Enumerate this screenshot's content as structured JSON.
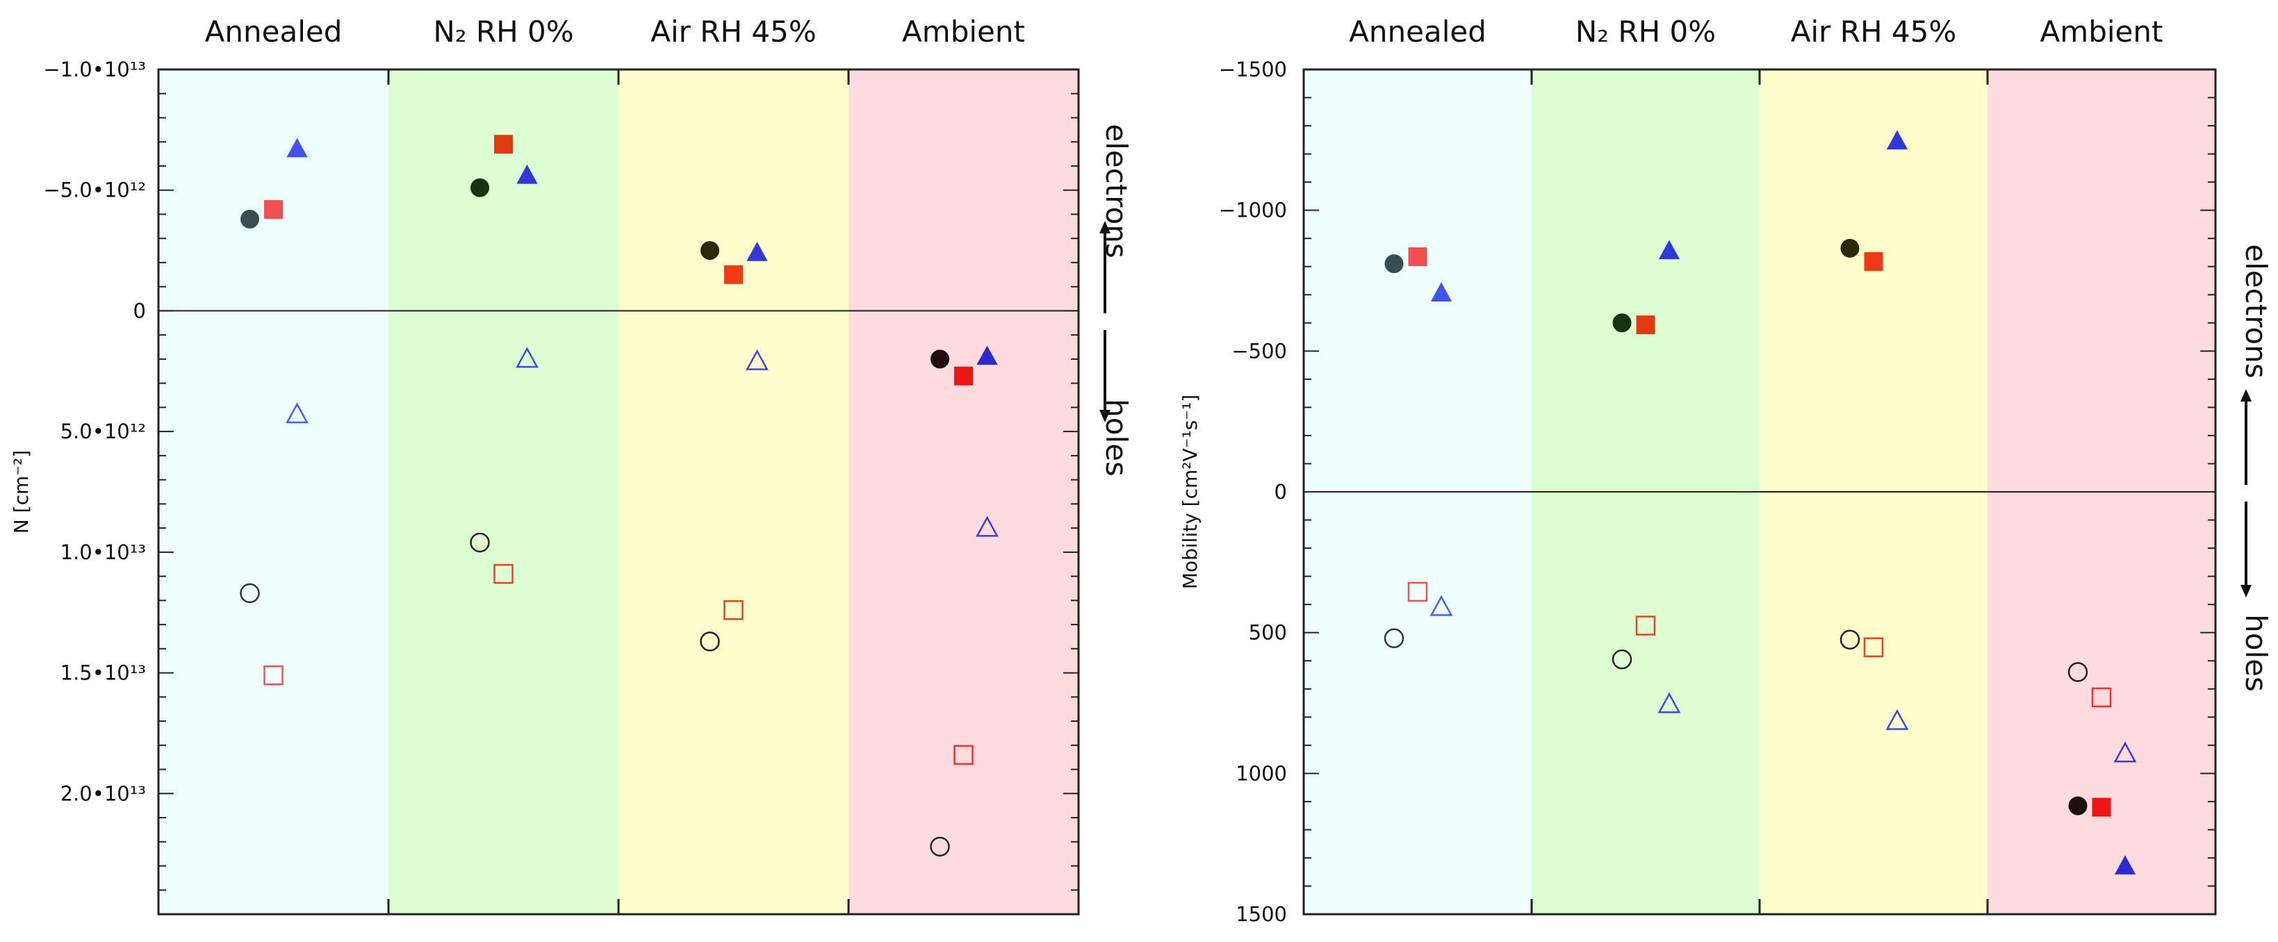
{
  "chart_data": [
    {
      "type": "scatter",
      "title": "",
      "ylabel": "N [cm⁻²]",
      "y_inverted": true,
      "ylim": [
        -10000000000000.0,
        25000000000000.0
      ],
      "categories": [
        "Annealed",
        "N₂ RH 0%",
        "Air RH 45%",
        "Ambient"
      ],
      "category_colors": [
        "#eefeff",
        "#ddfed3",
        "#fefdcb",
        "#fedcdd"
      ],
      "y_ticks": [
        {
          "value": -10000000000000.0,
          "label": "−1.0•10¹³"
        },
        {
          "value": -5000000000000.0,
          "label": "−5.0•10¹²"
        },
        {
          "value": 0,
          "label": "0"
        },
        {
          "value": 5000000000000.0,
          "label": "5.0•10¹²"
        },
        {
          "value": 10000000000000.0,
          "label": "1.0•10¹³"
        },
        {
          "value": 15000000000000.0,
          "label": "1.5•10¹³"
        },
        {
          "value": 20000000000000.0,
          "label": "2.0•10¹³"
        }
      ],
      "annotations": {
        "top": "electrons",
        "bottom": "holes"
      },
      "points": [
        {
          "cat": 0,
          "offset": -1,
          "y": -3800000000000.0,
          "marker": "circle",
          "filled": true,
          "color": "#3a4d50"
        },
        {
          "cat": 0,
          "offset": 0,
          "y": -4200000000000.0,
          "marker": "square",
          "filled": true,
          "color": "#f05050"
        },
        {
          "cat": 0,
          "offset": 1,
          "y": -6700000000000.0,
          "marker": "triangle",
          "filled": true,
          "color": "#3f52f0"
        },
        {
          "cat": 0,
          "offset": -1,
          "y": 11700000000000.0,
          "marker": "circle",
          "filled": false,
          "color": "#333333"
        },
        {
          "cat": 0,
          "offset": 0,
          "y": 15100000000000.0,
          "marker": "square",
          "filled": false,
          "color": "#f05050"
        },
        {
          "cat": 0,
          "offset": 1,
          "y": 4300000000000.0,
          "marker": "triangle",
          "filled": false,
          "color": "#4a5af0"
        },
        {
          "cat": 1,
          "offset": -1,
          "y": -5100000000000.0,
          "marker": "circle",
          "filled": true,
          "color": "#14330f"
        },
        {
          "cat": 1,
          "offset": 0,
          "y": -6900000000000.0,
          "marker": "square",
          "filled": true,
          "color": "#e23a10"
        },
        {
          "cat": 1,
          "offset": 1,
          "y": -5600000000000.0,
          "marker": "triangle",
          "filled": true,
          "color": "#2d3ad8"
        },
        {
          "cat": 1,
          "offset": -1,
          "y": 9600000000000.0,
          "marker": "circle",
          "filled": false,
          "color": "#222222"
        },
        {
          "cat": 1,
          "offset": 0,
          "y": 10900000000000.0,
          "marker": "square",
          "filled": false,
          "color": "#e04520"
        },
        {
          "cat": 1,
          "offset": 1,
          "y": 2000000000000.0,
          "marker": "triangle",
          "filled": false,
          "color": "#3a4ae0"
        },
        {
          "cat": 2,
          "offset": -1,
          "y": -2500000000000.0,
          "marker": "circle",
          "filled": true,
          "color": "#2a2a0a"
        },
        {
          "cat": 2,
          "offset": 0,
          "y": -1500000000000.0,
          "marker": "square",
          "filled": true,
          "color": "#f03a15"
        },
        {
          "cat": 2,
          "offset": 1,
          "y": -2400000000000.0,
          "marker": "triangle",
          "filled": true,
          "color": "#2d3ad8"
        },
        {
          "cat": 2,
          "offset": -1,
          "y": 13700000000000.0,
          "marker": "circle",
          "filled": false,
          "color": "#222222"
        },
        {
          "cat": 2,
          "offset": 0,
          "y": 12400000000000.0,
          "marker": "square",
          "filled": false,
          "color": "#e04520"
        },
        {
          "cat": 2,
          "offset": 1,
          "y": 2100000000000.0,
          "marker": "triangle",
          "filled": false,
          "color": "#3a4ae0"
        },
        {
          "cat": 3,
          "offset": -1,
          "y": 2000000000000.0,
          "marker": "circle",
          "filled": true,
          "color": "#1e0e0e"
        },
        {
          "cat": 3,
          "offset": 0,
          "y": 2700000000000.0,
          "marker": "square",
          "filled": true,
          "color": "#f01515"
        },
        {
          "cat": 3,
          "offset": 1,
          "y": 1900000000000.0,
          "marker": "triangle",
          "filled": true,
          "color": "#2c2ad0"
        },
        {
          "cat": 3,
          "offset": -1,
          "y": 22200000000000.0,
          "marker": "circle",
          "filled": false,
          "color": "#222222"
        },
        {
          "cat": 3,
          "offset": 0,
          "y": 18400000000000.0,
          "marker": "square",
          "filled": false,
          "color": "#f03030"
        },
        {
          "cat": 3,
          "offset": 1,
          "y": 9000000000000.0,
          "marker": "triangle",
          "filled": false,
          "color": "#3a3ae0"
        }
      ]
    },
    {
      "type": "scatter",
      "title": "",
      "ylabel": "Mobility [cm²V⁻¹s⁻¹]",
      "y_inverted": true,
      "ylim": [
        -1500,
        1500
      ],
      "categories": [
        "Annealed",
        "N₂ RH 0%",
        "Air RH 45%",
        "Ambient"
      ],
      "category_colors": [
        "#eefeff",
        "#ddfed3",
        "#fefdcb",
        "#fedcdd"
      ],
      "y_ticks": [
        {
          "value": -1500,
          "label": "−1500"
        },
        {
          "value": -1000,
          "label": "−1000"
        },
        {
          "value": -500,
          "label": "−500"
        },
        {
          "value": 0,
          "label": "0"
        },
        {
          "value": 500,
          "label": "500"
        },
        {
          "value": 1000,
          "label": "1000"
        },
        {
          "value": 1500,
          "label": "1500"
        }
      ],
      "annotations": {
        "top": "electrons",
        "bottom": "holes"
      },
      "points": [
        {
          "cat": 0,
          "offset": -1,
          "y": -810,
          "marker": "circle",
          "filled": true,
          "color": "#3a4d50"
        },
        {
          "cat": 0,
          "offset": 0,
          "y": -835,
          "marker": "square",
          "filled": true,
          "color": "#f05050"
        },
        {
          "cat": 0,
          "offset": 1,
          "y": -705,
          "marker": "triangle",
          "filled": true,
          "color": "#3f52f0"
        },
        {
          "cat": 0,
          "offset": -1,
          "y": 520,
          "marker": "circle",
          "filled": false,
          "color": "#333333"
        },
        {
          "cat": 0,
          "offset": 0,
          "y": 355,
          "marker": "square",
          "filled": false,
          "color": "#f05050"
        },
        {
          "cat": 0,
          "offset": 1,
          "y": 410,
          "marker": "triangle",
          "filled": false,
          "color": "#4a5af0"
        },
        {
          "cat": 1,
          "offset": -1,
          "y": -600,
          "marker": "circle",
          "filled": true,
          "color": "#14330f"
        },
        {
          "cat": 1,
          "offset": 0,
          "y": -593,
          "marker": "square",
          "filled": true,
          "color": "#e23a10"
        },
        {
          "cat": 1,
          "offset": 1,
          "y": -855,
          "marker": "triangle",
          "filled": true,
          "color": "#2d3ad8"
        },
        {
          "cat": 1,
          "offset": -1,
          "y": 595,
          "marker": "circle",
          "filled": false,
          "color": "#222222"
        },
        {
          "cat": 1,
          "offset": 0,
          "y": 475,
          "marker": "square",
          "filled": false,
          "color": "#e04520"
        },
        {
          "cat": 1,
          "offset": 1,
          "y": 755,
          "marker": "triangle",
          "filled": false,
          "color": "#3a4ae0"
        },
        {
          "cat": 2,
          "offset": -1,
          "y": -865,
          "marker": "circle",
          "filled": true,
          "color": "#2a2a0a"
        },
        {
          "cat": 2,
          "offset": 0,
          "y": -818,
          "marker": "square",
          "filled": true,
          "color": "#f03a15"
        },
        {
          "cat": 2,
          "offset": 1,
          "y": -1245,
          "marker": "triangle",
          "filled": true,
          "color": "#2d3ad8"
        },
        {
          "cat": 2,
          "offset": -1,
          "y": 525,
          "marker": "circle",
          "filled": false,
          "color": "#222222"
        },
        {
          "cat": 2,
          "offset": 0,
          "y": 552,
          "marker": "square",
          "filled": false,
          "color": "#e04520"
        },
        {
          "cat": 2,
          "offset": 1,
          "y": 815,
          "marker": "triangle",
          "filled": false,
          "color": "#3a4ae0"
        },
        {
          "cat": 3,
          "offset": -1,
          "y": 1115,
          "marker": "circle",
          "filled": true,
          "color": "#1e0e0e"
        },
        {
          "cat": 3,
          "offset": 0,
          "y": 1120,
          "marker": "square",
          "filled": true,
          "color": "#f01515"
        },
        {
          "cat": 3,
          "offset": 1,
          "y": 1330,
          "marker": "triangle",
          "filled": true,
          "color": "#2c2ad0"
        },
        {
          "cat": 3,
          "offset": -1,
          "y": 640,
          "marker": "circle",
          "filled": false,
          "color": "#222222"
        },
        {
          "cat": 3,
          "offset": 0,
          "y": 730,
          "marker": "square",
          "filled": false,
          "color": "#f03030"
        },
        {
          "cat": 3,
          "offset": 1,
          "y": 930,
          "marker": "triangle",
          "filled": false,
          "color": "#3a3ae0"
        }
      ]
    }
  ]
}
